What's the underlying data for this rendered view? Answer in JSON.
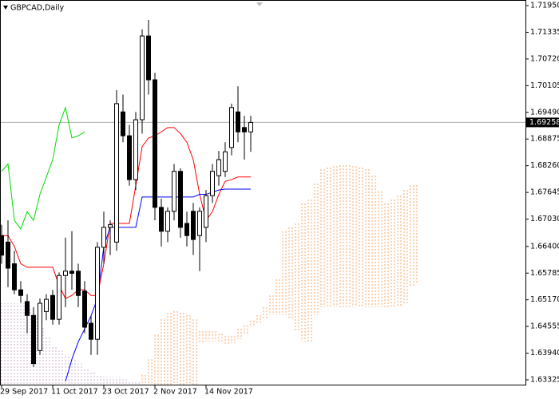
{
  "chart_data": {
    "type": "candlestick",
    "title": "GBPCAD,Daily",
    "categories": [
      "29 Sep 2017",
      null,
      null,
      null,
      null,
      null,
      null,
      null,
      "11 Oct 2017",
      null,
      null,
      null,
      null,
      null,
      null,
      null,
      "23 Oct 2017",
      null,
      null,
      null,
      null,
      null,
      null,
      null,
      "2 Nov 2017",
      null,
      null,
      null,
      null,
      null,
      null,
      null,
      "14 Nov 2017",
      null,
      null,
      null,
      null,
      null,
      null,
      null,
      null,
      null,
      null,
      null,
      null,
      null,
      null,
      null,
      null,
      null,
      null,
      null,
      null,
      null,
      null,
      null,
      null,
      null,
      null,
      null,
      null,
      null,
      null,
      null,
      null,
      null
    ],
    "open": [
      1.6665,
      1.665,
      1.66,
      1.654,
      1.6513,
      1.6481,
      1.64,
      1.649,
      1.6527,
      1.6472,
      1.6573,
      1.6583,
      1.6583,
      1.6537,
      1.6463,
      1.6426,
      1.6638,
      1.6684,
      1.665,
      1.695,
      1.6895,
      1.6794,
      1.6932,
      1.7125,
      1.7024,
      1.673,
      1.6675,
      1.6721,
      1.6813,
      1.6693,
      1.6721,
      1.6665,
      1.6684,
      1.6757,
      1.6803,
      1.6813,
      1.6868,
      1.695,
      1.6914,
      1.6904,
      null,
      null,
      null,
      null,
      null,
      null,
      null,
      null,
      null,
      null,
      null,
      null,
      null,
      null,
      null,
      null,
      null,
      null,
      null,
      null,
      null,
      null,
      null,
      null,
      null,
      null
    ],
    "high": [
      1.669,
      1.67,
      1.663,
      1.656,
      1.653,
      1.65,
      1.652,
      1.653,
      1.654,
      1.658,
      1.666,
      1.6675,
      1.66,
      1.656,
      1.648,
      1.665,
      1.672,
      1.67,
      1.7,
      1.699,
      1.692,
      1.695,
      1.714,
      1.7162,
      1.704,
      1.675,
      1.673,
      1.683,
      1.682,
      1.672,
      1.674,
      1.673,
      1.677,
      1.683,
      1.686,
      1.688,
      1.6969,
      1.7009,
      1.6941,
      1.6941,
      null,
      null,
      null,
      null,
      null,
      null,
      null,
      null,
      null,
      null,
      null,
      null,
      null,
      null,
      null,
      null,
      null,
      null,
      null,
      null,
      null,
      null,
      null,
      null,
      null,
      null
    ],
    "low": [
      1.66,
      1.6546,
      1.653,
      1.651,
      1.644,
      1.6362,
      1.639,
      1.647,
      1.646,
      1.646,
      1.65,
      1.654,
      1.65,
      1.644,
      1.639,
      1.639,
      1.66,
      1.662,
      1.663,
      1.688,
      1.678,
      1.677,
      1.69,
      1.699,
      1.67,
      1.664,
      1.665,
      1.67,
      1.666,
      1.664,
      1.662,
      1.6583,
      1.665,
      1.674,
      1.678,
      1.68,
      1.685,
      1.688,
      1.684,
      1.6858,
      null,
      null,
      null,
      null,
      null,
      null,
      null,
      null,
      null,
      null,
      null,
      null,
      null,
      null,
      null,
      null,
      null,
      null,
      null,
      null,
      null,
      null,
      null,
      null,
      null,
      null
    ],
    "close": [
      1.662,
      1.659,
      1.654,
      1.6527,
      1.6481,
      1.637,
      1.6509,
      1.6518,
      1.6472,
      1.6573,
      1.6583,
      1.6578,
      1.6527,
      1.6454,
      1.6426,
      1.6638,
      1.6684,
      1.669,
      1.6969,
      1.6895,
      1.6794,
      1.6932,
      1.7125,
      1.7024,
      1.673,
      1.6675,
      1.6721,
      1.6813,
      1.6684,
      1.6665,
      1.6656,
      1.6721,
      1.6757,
      1.6813,
      1.684,
      1.6858,
      1.696,
      1.6904,
      1.6904,
      1.69258,
      null,
      null,
      null,
      null,
      null,
      null,
      null,
      null,
      null,
      null,
      null,
      null,
      null,
      null,
      null,
      null,
      null,
      null,
      null,
      null,
      null,
      null,
      null,
      null,
      null,
      null
    ],
    "up_color": "#ffffff",
    "down_color": "#000000",
    "series": [
      {
        "color": "#ff0000",
        "values": [
          1.6665,
          1.6665,
          1.664,
          1.66,
          1.6592,
          1.6592,
          1.6592,
          1.6592,
          1.6592,
          1.655,
          1.652,
          1.6527,
          1.654,
          1.654,
          1.6527,
          1.6527,
          1.66,
          1.6693,
          1.6693,
          1.6693,
          1.6693,
          1.678,
          1.687,
          1.689,
          1.6895,
          1.6904,
          1.6914,
          1.6914,
          1.69,
          1.688,
          1.684,
          1.676,
          1.67,
          1.672,
          1.676,
          1.679,
          1.6794,
          1.68,
          1.68,
          1.68,
          null,
          null,
          null,
          null,
          null,
          null,
          null,
          null,
          null,
          null,
          null,
          null,
          null,
          null,
          null,
          null,
          null,
          null,
          null,
          null,
          null,
          null,
          null,
          null,
          null,
          null
        ]
      },
      {
        "color": "#0000ff",
        "values": [
          null,
          null,
          null,
          null,
          null,
          null,
          null,
          null,
          null,
          null,
          1.6329,
          1.638,
          1.642,
          1.645,
          1.648,
          1.652,
          1.664,
          1.6684,
          1.6684,
          1.6684,
          1.6684,
          1.6684,
          1.6754,
          1.6754,
          1.6754,
          1.6754,
          1.6754,
          1.6754,
          1.6754,
          1.6754,
          1.6754,
          1.676,
          1.676,
          1.6765,
          1.677,
          1.6772,
          1.6772,
          1.6772,
          1.6772,
          1.6772,
          null,
          null,
          null,
          null,
          null,
          null,
          null,
          null,
          null,
          null,
          null,
          null,
          null,
          null,
          null,
          null,
          null,
          null,
          null,
          null,
          null,
          null,
          null,
          null,
          null,
          null
        ]
      },
      {
        "color": "#00dd00",
        "values": [
          1.6813,
          1.683,
          1.67,
          1.668,
          1.672,
          1.67,
          1.676,
          1.68,
          1.684,
          1.692,
          1.696,
          1.689,
          1.6895,
          1.6904,
          null,
          null,
          null,
          null,
          null,
          null,
          null,
          null,
          null,
          null,
          null,
          null,
          null,
          null,
          null,
          null,
          null,
          null,
          null,
          null,
          null,
          null,
          null,
          null,
          null,
          null,
          null,
          null,
          null,
          null,
          null,
          null,
          null,
          null,
          null,
          null,
          null,
          null,
          null,
          null,
          null,
          null,
          null,
          null,
          null,
          null,
          null,
          null,
          null,
          null,
          null,
          null
        ]
      }
    ],
    "cloud": {
      "up_color": "#f4a460",
      "down_color": "#cdb5cd",
      "span_a": [
        1.6316,
        1.6316,
        1.6316,
        1.6316,
        1.6316,
        1.6316,
        1.6316,
        1.6316,
        1.6316,
        1.6316,
        1.6316,
        1.6316,
        1.6316,
        1.6316,
        1.6316,
        1.6316,
        1.6316,
        1.6316,
        1.6316,
        1.6316,
        1.6316,
        1.6316,
        1.6344,
        1.638,
        1.6436,
        1.6472,
        1.6487,
        1.6491,
        1.6487,
        1.6482,
        1.6472,
        1.6445,
        1.6445,
        1.6445,
        1.6439,
        1.6434,
        1.6434,
        1.645,
        1.6458,
        1.6469,
        1.6482,
        1.65,
        1.6527,
        1.6564,
        1.6675,
        1.6684,
        1.6693,
        1.6739,
        1.6748,
        1.6785,
        1.6818,
        1.6822,
        1.6825,
        1.6827,
        1.6827,
        1.6825,
        1.6822,
        1.6818,
        1.6803,
        1.6767,
        1.6739,
        1.6748,
        1.6757,
        1.677,
        1.6781,
        1.6781
      ],
      "span_b": [
        1.6509,
        1.6509,
        1.6509,
        1.6509,
        1.65,
        1.648,
        1.6454,
        1.643,
        1.641,
        1.64,
        1.639,
        1.638,
        1.637,
        1.636,
        1.635,
        1.6345,
        1.634,
        1.634,
        1.634,
        1.6335,
        1.633,
        1.633,
        1.6316,
        1.6316,
        1.6316,
        1.6316,
        1.6316,
        1.6316,
        1.6316,
        1.6316,
        1.6316,
        1.6417,
        1.6421,
        1.6421,
        1.6417,
        1.6413,
        1.6417,
        1.6426,
        1.6436,
        1.6454,
        1.6463,
        1.6472,
        1.6482,
        1.6482,
        1.6482,
        1.6472,
        1.6445,
        1.6421,
        1.6417,
        1.6482,
        1.65,
        1.65,
        1.65,
        1.65,
        1.65,
        1.65,
        1.65,
        1.65,
        1.65,
        1.65,
        1.65,
        1.65,
        1.65,
        1.6509,
        1.6546,
        1.6555
      ]
    },
    "last_price": 1.69258,
    "ylim": [
      1.63215,
      1.72079
    ],
    "yticks": [
      {
        "value": 1.7195,
        "label": "1.71950"
      },
      1.71335,
      {
        "value": 1.7072,
        "label": "1.70720"
      },
      1.70105,
      {
        "value": 1.6949,
        "label": "1.69490"
      },
      1.68875,
      {
        "value": 1.6826,
        "label": "1.68260"
      },
      1.67645,
      {
        "value": 1.6703,
        "label": "1.67030"
      },
      {
        "value": 1.664,
        "label": "1.66400"
      },
      1.65785,
      {
        "value": 1.6517,
        "label": "1.65170"
      },
      1.64555,
      {
        "value": 1.6394,
        "label": "1.63940"
      },
      1.63325
    ]
  }
}
